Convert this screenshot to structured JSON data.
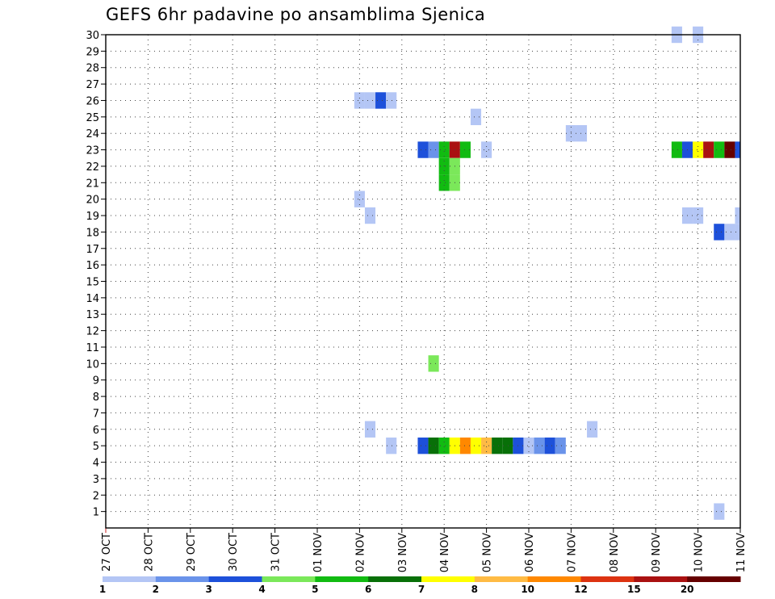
{
  "chart_data": {
    "type": "heatmap",
    "title": "GEFS 6hr padavine po ansamblima Sjenica",
    "xlabel": "",
    "ylabel": "",
    "x_ticks": [
      "27 OCT",
      "28 OCT",
      "29 OCT",
      "30 OCT",
      "31 OCT",
      "01 NOV",
      "02 NOV",
      "03 NOV",
      "04 NOV",
      "05 NOV",
      "06 NOV",
      "07 NOV",
      "08 NOV",
      "09 NOV",
      "10 NOV",
      "11 NOV"
    ],
    "xlim_days": [
      0,
      15
    ],
    "y_ticks": [
      1,
      2,
      3,
      4,
      5,
      6,
      7,
      8,
      9,
      10,
      11,
      12,
      13,
      14,
      15,
      16,
      17,
      18,
      19,
      20,
      21,
      22,
      23,
      24,
      25,
      26,
      27,
      28,
      29,
      30
    ],
    "ylim": [
      0,
      30
    ],
    "grid": true,
    "step_hours": 6,
    "colorbar": {
      "placement": "bottom",
      "labels": [
        "1",
        "2",
        "3",
        "4",
        "5",
        "6",
        "7",
        "8",
        "10",
        "12",
        "15",
        "20"
      ],
      "colors": [
        "#b4c6f5",
        "#6a93ea",
        "#1d50da",
        "#7be85a",
        "#11bb11",
        "#087008",
        "#ffff00",
        "#ffbb44",
        "#ff8800",
        "#dd3311",
        "#aa1111",
        "#660000"
      ]
    },
    "cells": [
      {
        "member": 30,
        "x": 13.5,
        "v": 1
      },
      {
        "member": 30,
        "x": 14.0,
        "v": 1
      },
      {
        "member": 26,
        "x": 6.0,
        "v": 1
      },
      {
        "member": 26,
        "x": 6.25,
        "v": 1
      },
      {
        "member": 26,
        "x": 6.5,
        "v": 3
      },
      {
        "member": 26,
        "x": 6.75,
        "v": 1
      },
      {
        "member": 25,
        "x": 8.75,
        "v": 1
      },
      {
        "member": 24,
        "x": 11.0,
        "v": 1
      },
      {
        "member": 24,
        "x": 11.25,
        "v": 1
      },
      {
        "member": 23,
        "x": 7.5,
        "v": 3
      },
      {
        "member": 23,
        "x": 7.75,
        "v": 2
      },
      {
        "member": 23,
        "x": 8.0,
        "v": 5
      },
      {
        "member": 23,
        "x": 8.25,
        "v": 15
      },
      {
        "member": 23,
        "x": 8.5,
        "v": 5
      },
      {
        "member": 23,
        "x": 9.0,
        "v": 1
      },
      {
        "member": 23,
        "x": 13.5,
        "v": 5
      },
      {
        "member": 23,
        "x": 13.75,
        "v": 3
      },
      {
        "member": 23,
        "x": 14.0,
        "v": 7
      },
      {
        "member": 23,
        "x": 14.25,
        "v": 15
      },
      {
        "member": 23,
        "x": 14.5,
        "v": 5
      },
      {
        "member": 23,
        "x": 14.75,
        "v": 20
      },
      {
        "member": 23,
        "x": 15.0,
        "v": 3
      },
      {
        "member": 22,
        "x": 8.0,
        "v": 5
      },
      {
        "member": 22,
        "x": 8.25,
        "v": 4
      },
      {
        "member": 21,
        "x": 8.0,
        "v": 5
      },
      {
        "member": 21,
        "x": 8.25,
        "v": 4
      },
      {
        "member": 20,
        "x": 6.0,
        "v": 1
      },
      {
        "member": 19,
        "x": 6.25,
        "v": 1
      },
      {
        "member": 19,
        "x": 13.75,
        "v": 1
      },
      {
        "member": 19,
        "x": 14.0,
        "v": 1
      },
      {
        "member": 19,
        "x": 15.0,
        "v": 1
      },
      {
        "member": 18,
        "x": 14.5,
        "v": 3
      },
      {
        "member": 18,
        "x": 14.75,
        "v": 1
      },
      {
        "member": 18,
        "x": 15.0,
        "v": 1
      },
      {
        "member": 10,
        "x": 7.75,
        "v": 4
      },
      {
        "member": 6,
        "x": 6.25,
        "v": 1
      },
      {
        "member": 6,
        "x": 11.5,
        "v": 1
      },
      {
        "member": 5,
        "x": 6.75,
        "v": 1
      },
      {
        "member": 5,
        "x": 7.5,
        "v": 3
      },
      {
        "member": 5,
        "x": 7.75,
        "v": 6
      },
      {
        "member": 5,
        "x": 8.0,
        "v": 5
      },
      {
        "member": 5,
        "x": 8.25,
        "v": 7
      },
      {
        "member": 5,
        "x": 8.5,
        "v": 10
      },
      {
        "member": 5,
        "x": 8.75,
        "v": 7
      },
      {
        "member": 5,
        "x": 9.0,
        "v": 8
      },
      {
        "member": 5,
        "x": 9.25,
        "v": 6
      },
      {
        "member": 5,
        "x": 9.5,
        "v": 6
      },
      {
        "member": 5,
        "x": 9.75,
        "v": 3
      },
      {
        "member": 5,
        "x": 10.0,
        "v": 1
      },
      {
        "member": 5,
        "x": 10.25,
        "v": 2
      },
      {
        "member": 5,
        "x": 10.5,
        "v": 3
      },
      {
        "member": 5,
        "x": 10.75,
        "v": 2
      },
      {
        "member": 1,
        "x": 14.5,
        "v": 1
      }
    ]
  }
}
